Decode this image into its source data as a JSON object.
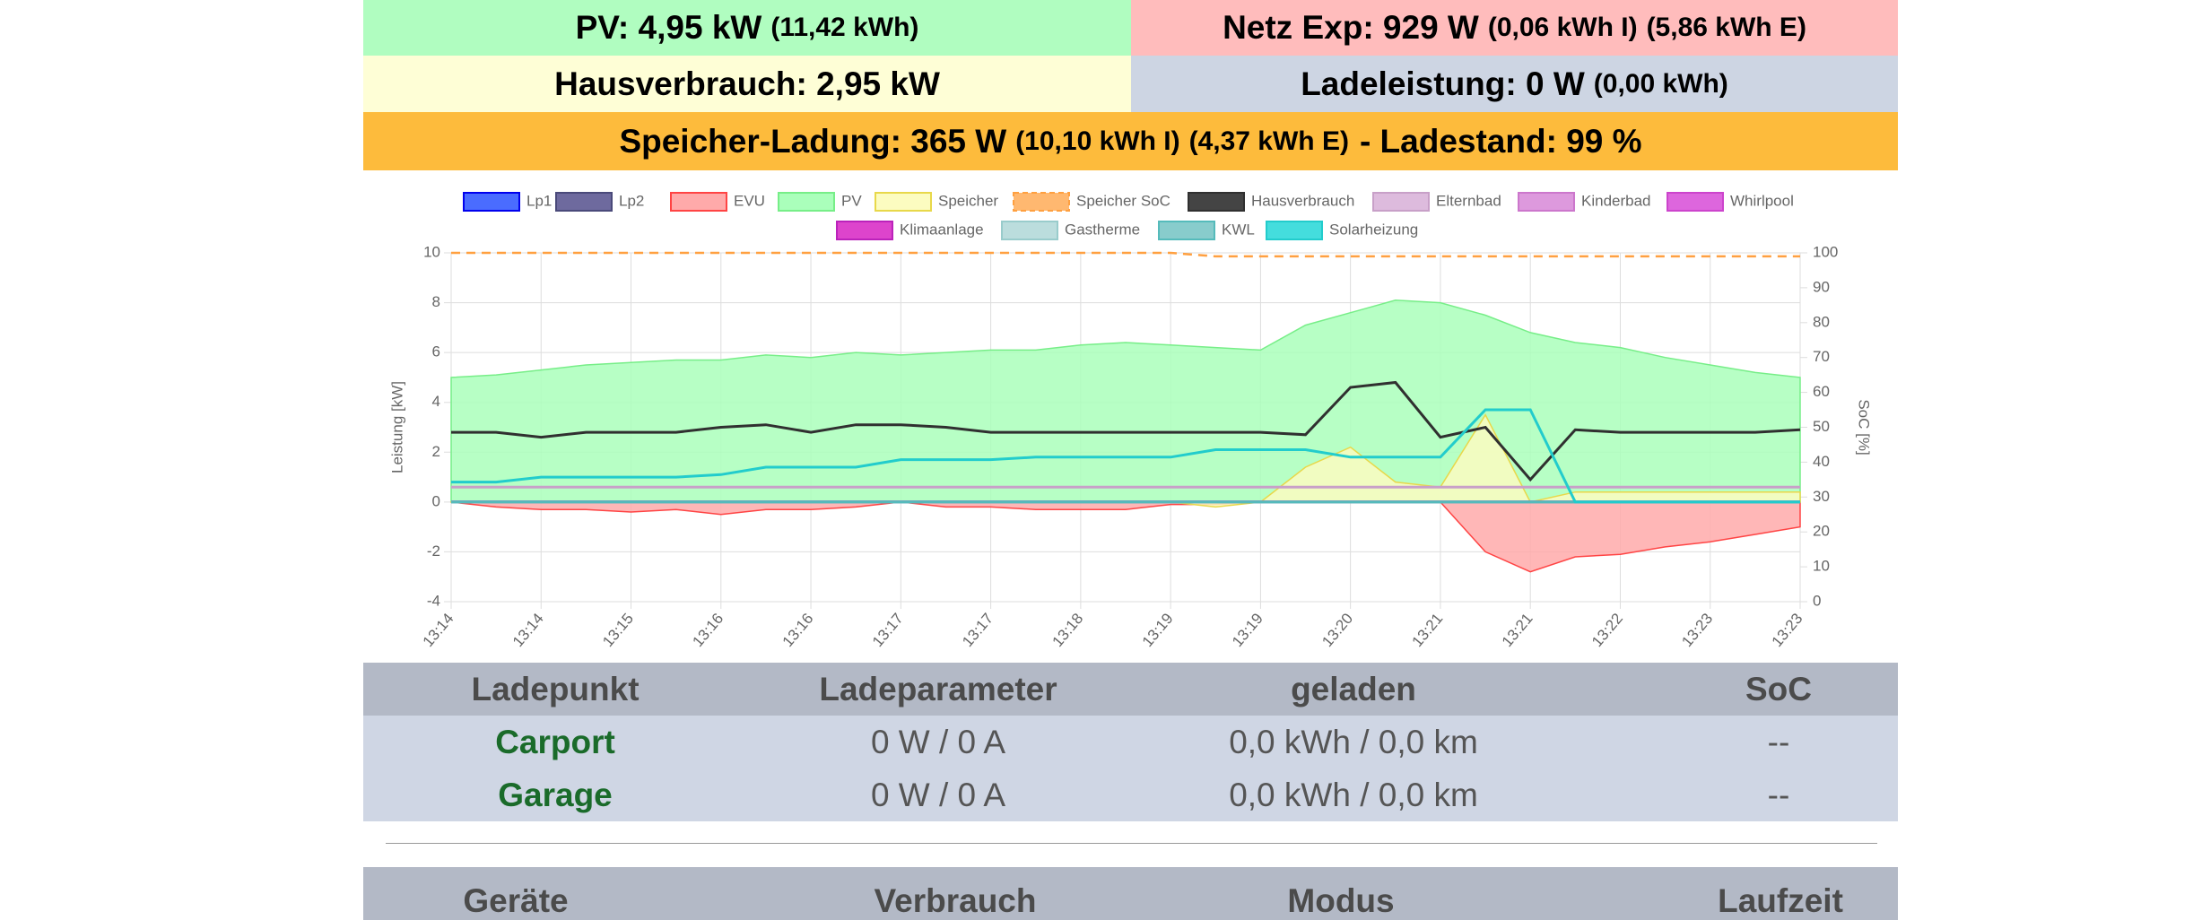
{
  "header": {
    "pv": {
      "main": "PV: 4,95 kW",
      "sub": "(11,42 kWh)"
    },
    "netz": {
      "main": "Netz Exp: 929 W",
      "sub1": "(0,06 kWh I)",
      "sub2": "(5,86 kWh E)"
    },
    "haus": {
      "main": "Hausverbrauch: 2,95 kW"
    },
    "lade": {
      "main": "Ladeleistung: 0 W",
      "sub": "(0,00 kWh)"
    },
    "speicher": {
      "main": "Speicher-Ladung: 365 W",
      "sub1": "(10,10 kWh I)",
      "sub2": "(4,37 kWh E)",
      "tail": "- Ladestand: 99 %"
    }
  },
  "chart_data": {
    "type": "line",
    "ylabel": "Leistung [kW]",
    "y2label": "SoC [%]",
    "categories": [
      "13:14",
      null,
      "13:14",
      null,
      "13:15",
      null,
      "13:16",
      null,
      "13:16",
      null,
      "13:17",
      null,
      "13:17",
      null,
      "13:18",
      null,
      "13:19",
      null,
      "13:19",
      null,
      "13:20",
      null,
      "13:21",
      null,
      "13:21",
      null,
      "13:22",
      null,
      "13:23",
      null,
      "13:23"
    ],
    "ylim": [
      -4,
      10
    ],
    "yticks": [
      -4,
      -2,
      0,
      2,
      4,
      6,
      8,
      10
    ],
    "y2lim": [
      0,
      100
    ],
    "y2ticks": [
      0,
      10,
      20,
      30,
      40,
      50,
      60,
      70,
      80,
      90,
      100
    ],
    "grid": true,
    "series": [
      {
        "name": "Lp1",
        "color": "#0000ee",
        "fill": "#4a6cff",
        "values": [
          0,
          0,
          0,
          0,
          0,
          0,
          0,
          0,
          0,
          0,
          0,
          0,
          0,
          0,
          0,
          0,
          0,
          0,
          0,
          0,
          0,
          0,
          0,
          0,
          0,
          0,
          0,
          0,
          0,
          0,
          0
        ]
      },
      {
        "name": "Lp2",
        "color": "#4a4a7a",
        "fill": "#6e6a9e",
        "values": [
          0,
          0,
          0,
          0,
          0,
          0,
          0,
          0,
          0,
          0,
          0,
          0,
          0,
          0,
          0,
          0,
          0,
          0,
          0,
          0,
          0,
          0,
          0,
          0,
          0,
          0,
          0,
          0,
          0,
          0,
          0
        ]
      },
      {
        "name": "EVU",
        "color": "#ff4444",
        "fill": "#ffaaaa",
        "area": true,
        "values": [
          0,
          -0.2,
          -0.3,
          -0.3,
          -0.4,
          -0.3,
          -0.5,
          -0.3,
          -0.3,
          -0.2,
          0,
          -0.2,
          -0.2,
          -0.3,
          -0.3,
          -0.3,
          -0.1,
          -0.1,
          0,
          0,
          0,
          0,
          0,
          -2.0,
          -2.8,
          -2.2,
          -2.1,
          -1.8,
          -1.6,
          -1.3,
          -1.0
        ]
      },
      {
        "name": "PV",
        "color": "#77ee88",
        "fill": "#aaffbb",
        "area": true,
        "values": [
          5.0,
          5.1,
          5.3,
          5.5,
          5.6,
          5.7,
          5.7,
          5.9,
          5.8,
          6.0,
          5.9,
          6.0,
          6.1,
          6.1,
          6.3,
          6.4,
          6.3,
          6.2,
          6.1,
          7.1,
          7.6,
          8.1,
          8.0,
          7.5,
          6.8,
          6.4,
          6.2,
          5.8,
          5.5,
          5.2,
          5.0
        ]
      },
      {
        "name": "Speicher",
        "color": "#e8d84a",
        "fill": "#fcfcc0",
        "area": true,
        "values": [
          0,
          0,
          0,
          0,
          0,
          0,
          0,
          0,
          0,
          0,
          0,
          0,
          0,
          0,
          0,
          0,
          0,
          -0.2,
          0,
          1.4,
          2.2,
          0.8,
          0.6,
          3.5,
          0,
          0.4,
          0.4,
          0.4,
          0.4,
          0.4,
          0.4
        ]
      },
      {
        "name": "Speicher SoC",
        "color": "#ffa040",
        "fill": "#ffb870",
        "dashed": true,
        "axis": "y2",
        "values": [
          100,
          100,
          100,
          100,
          100,
          100,
          100,
          100,
          100,
          100,
          100,
          100,
          100,
          100,
          100,
          100,
          100,
          99,
          99,
          99,
          99,
          99,
          99,
          99,
          99,
          99,
          99,
          99,
          99,
          99,
          99
        ]
      },
      {
        "name": "Hausverbrauch",
        "color": "#303030",
        "fill": "#444444",
        "values": [
          2.8,
          2.8,
          2.6,
          2.8,
          2.8,
          2.8,
          3.0,
          3.1,
          2.8,
          3.1,
          3.1,
          3.0,
          2.8,
          2.8,
          2.8,
          2.8,
          2.8,
          2.8,
          2.8,
          2.7,
          4.6,
          4.8,
          2.6,
          3.0,
          0.9,
          2.9,
          2.8,
          2.8,
          2.8,
          2.8,
          2.9
        ]
      },
      {
        "name": "Elternbad",
        "color": "#c8a0c8",
        "fill": "#ddbbdd",
        "values": [
          0.6,
          0.6,
          0.6,
          0.6,
          0.6,
          0.6,
          0.6,
          0.6,
          0.6,
          0.6,
          0.6,
          0.6,
          0.6,
          0.6,
          0.6,
          0.6,
          0.6,
          0.6,
          0.6,
          0.6,
          0.6,
          0.6,
          0.6,
          0.6,
          0.6,
          0.6,
          0.6,
          0.6,
          0.6,
          0.6,
          0.6
        ]
      },
      {
        "name": "Kinderbad",
        "color": "#cc77cc",
        "fill": "#dd99dd",
        "values": [
          0,
          0,
          0,
          0,
          0,
          0,
          0,
          0,
          0,
          0,
          0,
          0,
          0,
          0,
          0,
          0,
          0,
          0,
          0,
          0,
          0,
          0,
          0,
          0,
          0,
          0,
          0,
          0,
          0,
          0,
          0
        ]
      },
      {
        "name": "Whirlpool",
        "color": "#cc44cc",
        "fill": "#dd66dd",
        "values": [
          0,
          0,
          0,
          0,
          0,
          0,
          0,
          0,
          0,
          0,
          0,
          0,
          0,
          0,
          0,
          0,
          0,
          0,
          0,
          0,
          0,
          0,
          0,
          0,
          0,
          0,
          0,
          0,
          0,
          0,
          0
        ]
      },
      {
        "name": "Klimaanlage",
        "color": "#bb22bb",
        "fill": "#dd44cc",
        "values": [
          0,
          0,
          0,
          0,
          0,
          0,
          0,
          0,
          0,
          0,
          0,
          0,
          0,
          0,
          0,
          0,
          0,
          0,
          0,
          0,
          0,
          0,
          0,
          0,
          0,
          0,
          0,
          0,
          0,
          0,
          0
        ]
      },
      {
        "name": "Gastherme",
        "color": "#99cccc",
        "fill": "#bbdddd",
        "values": [
          0,
          0,
          0,
          0,
          0,
          0,
          0,
          0,
          0,
          0,
          0,
          0,
          0,
          0,
          0,
          0,
          0,
          0,
          0,
          0,
          0,
          0,
          0,
          0,
          0,
          0,
          0,
          0,
          0,
          0,
          0
        ]
      },
      {
        "name": "KWL",
        "color": "#55bbbb",
        "fill": "#88cccc",
        "values": [
          0,
          0,
          0,
          0,
          0,
          0,
          0,
          0,
          0,
          0,
          0,
          0,
          0,
          0,
          0,
          0,
          0,
          0,
          0,
          0,
          0,
          0,
          0,
          0,
          0,
          0,
          0,
          0,
          0,
          0,
          0
        ]
      },
      {
        "name": "Solarheizung",
        "color": "#22cccc",
        "fill": "#44dddd",
        "values": [
          0.8,
          0.8,
          1.0,
          1.0,
          1.0,
          1.0,
          1.1,
          1.4,
          1.4,
          1.4,
          1.7,
          1.7,
          1.7,
          1.8,
          1.8,
          1.8,
          1.8,
          2.1,
          2.1,
          2.1,
          1.8,
          1.8,
          1.8,
          3.7,
          3.7,
          0,
          0,
          0,
          0,
          0,
          0
        ]
      }
    ]
  },
  "table": {
    "header": [
      "Ladepunkt",
      "Ladeparameter",
      "geladen",
      "SoC"
    ],
    "rows": [
      [
        "Carport",
        "0 W / 0 A",
        "0,0 kWh / 0,0 km",
        "--"
      ],
      [
        "Garage",
        "0 W / 0 A",
        "0,0 kWh / 0,0 km",
        "--"
      ]
    ]
  },
  "table2": {
    "header": [
      "Geräte",
      "Verbrauch",
      "Modus",
      "Laufzeit"
    ]
  }
}
